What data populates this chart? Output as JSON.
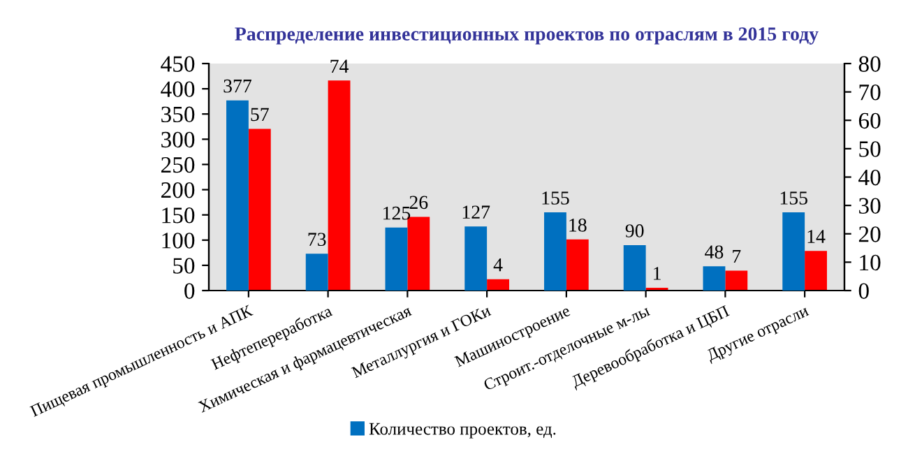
{
  "chart_data": {
    "type": "bar",
    "title": "Распределение инвестиционных проектов по отраслям в 2015 году",
    "categories": [
      "Пищевая промышленность и АПК",
      "Нефтепереработка",
      "Химическая и фармацевтическая",
      "Металлургия и ГОКи",
      "Машиностроение",
      "Строит.-отделочные м-лы",
      "Деревообработка и ЦБП",
      "Другие отрасли"
    ],
    "series": [
      {
        "name": "Количество проектов, ед.",
        "color": "#0070c0",
        "values": [
          377,
          73,
          125,
          127,
          155,
          90,
          48,
          155
        ]
      },
      {
        "color": "#ff0000",
        "axis": "y2",
        "values": [
          57,
          74,
          26,
          4,
          18,
          1,
          7,
          14
        ]
      }
    ],
    "ylim": [
      0,
      450
    ],
    "yticks": [
      0,
      50,
      100,
      150,
      200,
      250,
      300,
      350,
      400,
      450
    ],
    "y2lim": [
      0,
      80
    ],
    "y2ticks": [
      0,
      10,
      20,
      30,
      40,
      50,
      60,
      70,
      80
    ],
    "data_labels": true,
    "grid": false,
    "legend": "bottom"
  }
}
